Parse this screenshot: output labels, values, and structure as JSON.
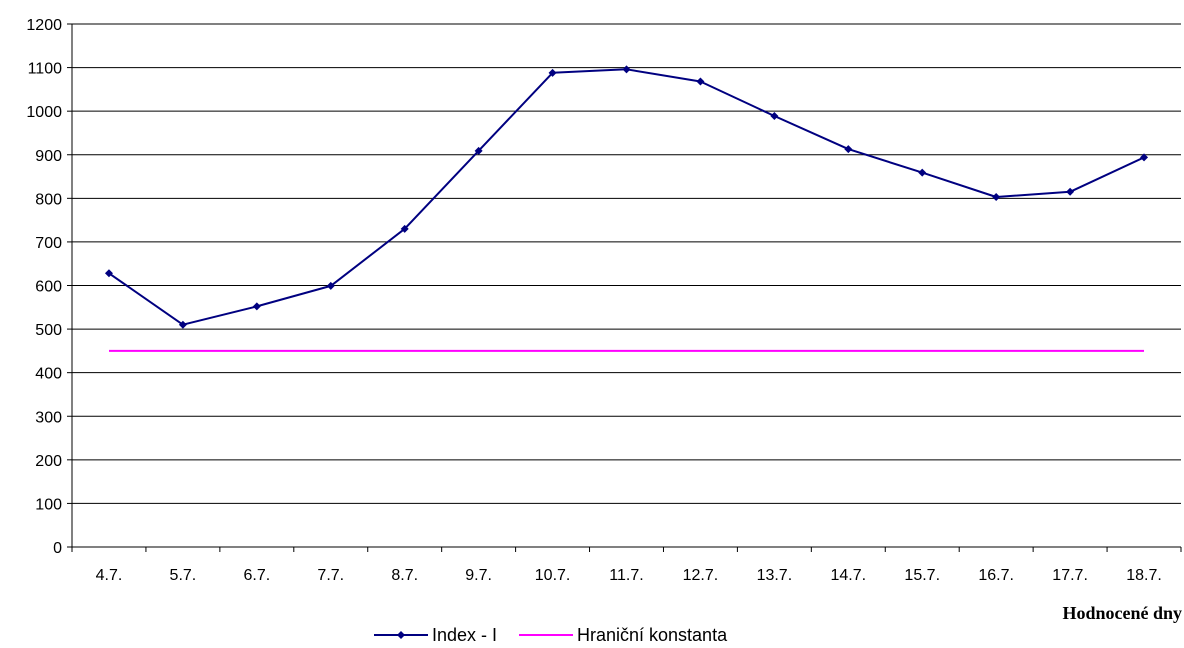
{
  "chart_data": {
    "type": "line",
    "title": "",
    "xlabel": "Hodnocené dny",
    "ylabel": "",
    "ylim": [
      0,
      1200
    ],
    "y_ticks": [
      0,
      100,
      200,
      300,
      400,
      500,
      600,
      700,
      800,
      900,
      1000,
      1100,
      1200
    ],
    "categories": [
      "4.7.",
      "5.7.",
      "6.7.",
      "7.7.",
      "8.7.",
      "9.7.",
      "10.7.",
      "11.7.",
      "12.7.",
      "13.7.",
      "14.7.",
      "15.7.",
      "16.7.",
      "17.7.",
      "18.7."
    ],
    "grid": "horizontal",
    "legend_position": "bottom",
    "series": [
      {
        "name": "Index - I",
        "color": "#000080",
        "marker": "diamond",
        "values": [
          628,
          510,
          552,
          599,
          730,
          909,
          1088,
          1096,
          1068,
          989,
          913,
          859,
          803,
          815,
          894
        ]
      },
      {
        "name": "Hraniční konstanta",
        "color": "#ff00ff",
        "marker": "none",
        "values": [
          450,
          450,
          450,
          450,
          450,
          450,
          450,
          450,
          450,
          450,
          450,
          450,
          450,
          450,
          450
        ]
      }
    ]
  }
}
